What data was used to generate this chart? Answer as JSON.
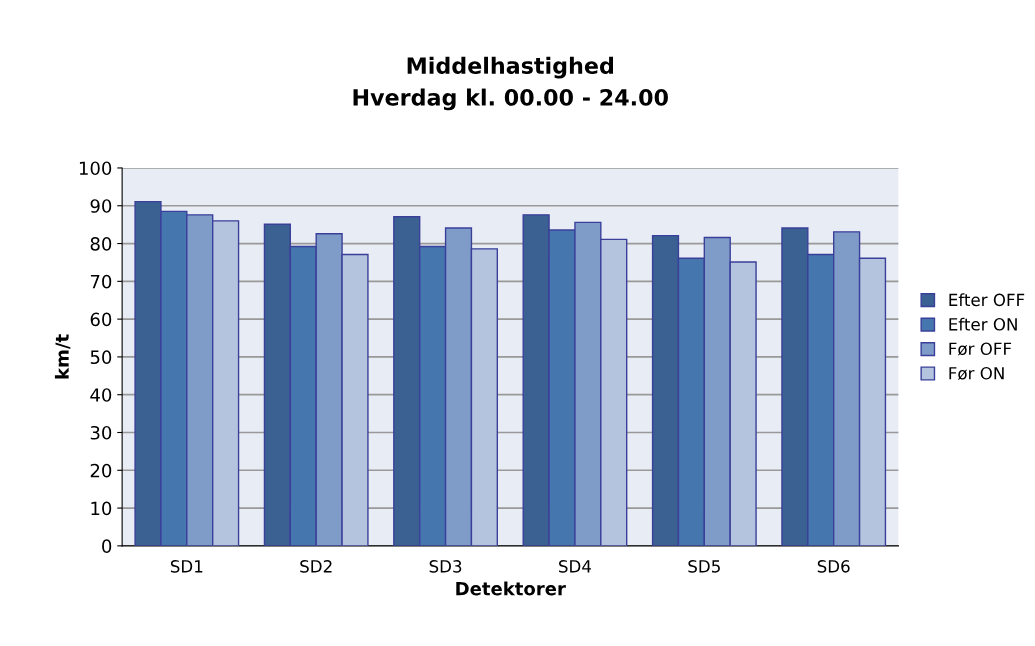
{
  "chart_data": {
    "type": "bar",
    "title": "Middelhastighed\nHverdag kl. 00.00 - 24.00",
    "xlabel": "Detektorer",
    "ylabel": "km/t",
    "categories": [
      "SD1",
      "SD2",
      "SD3",
      "SD4",
      "SD5",
      "SD6"
    ],
    "series": [
      {
        "name": "Efter OFF",
        "color": "#3a6192",
        "values": [
          91.1,
          85.1,
          87.1,
          87.6,
          82.1,
          84.1
        ]
      },
      {
        "name": "Efter ON",
        "color": "#4676ae",
        "values": [
          88.5,
          79.2,
          79.2,
          83.6,
          76.1,
          77.1
        ]
      },
      {
        "name": "Før OFF",
        "color": "#7f9cc8",
        "values": [
          87.6,
          82.6,
          84.1,
          85.6,
          81.6,
          83.1
        ]
      },
      {
        "name": "Før ON",
        "color": "#b4c3de",
        "values": [
          86.0,
          77.1,
          78.6,
          81.1,
          75.1,
          76.1
        ]
      }
    ],
    "ylim": [
      0,
      100
    ],
    "yticks": [
      0,
      10,
      20,
      30,
      40,
      50,
      60,
      70,
      80,
      90,
      100
    ],
    "grid": "y",
    "legend": "right"
  }
}
